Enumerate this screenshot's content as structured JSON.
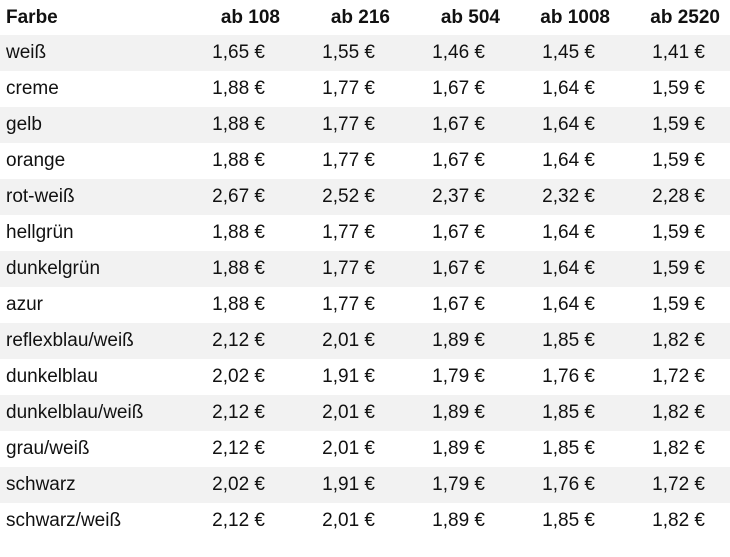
{
  "table": {
    "headers": [
      "Farbe",
      "ab 108",
      "ab 216",
      "ab 504",
      "ab 1008",
      "ab 2520"
    ],
    "rows": [
      [
        "weiß",
        "1,65 €",
        "1,55 €",
        "1,46 €",
        "1,45 €",
        "1,41 €"
      ],
      [
        "creme",
        "1,88 €",
        "1,77 €",
        "1,67 €",
        "1,64 €",
        "1,59 €"
      ],
      [
        "gelb",
        "1,88 €",
        "1,77 €",
        "1,67 €",
        "1,64 €",
        "1,59 €"
      ],
      [
        "orange",
        "1,88 €",
        "1,77 €",
        "1,67 €",
        "1,64 €",
        "1,59 €"
      ],
      [
        "rot-weiß",
        "2,67 €",
        "2,52 €",
        "2,37 €",
        "2,32 €",
        "2,28 €"
      ],
      [
        "hellgrün",
        "1,88 €",
        "1,77 €",
        "1,67 €",
        "1,64 €",
        "1,59 €"
      ],
      [
        "dunkelgrün",
        "1,88 €",
        "1,77 €",
        "1,67 €",
        "1,64 €",
        "1,59 €"
      ],
      [
        "azur",
        "1,88 €",
        "1,77 €",
        "1,67 €",
        "1,64 €",
        "1,59 €"
      ],
      [
        "reflexblau/weiß",
        "2,12 €",
        "2,01 €",
        "1,89 €",
        "1,85 €",
        "1,82 €"
      ],
      [
        "dunkelblau",
        "2,02 €",
        "1,91 €",
        "1,79 €",
        "1,76 €",
        "1,72 €"
      ],
      [
        "dunkelblau/weiß",
        "2,12 €",
        "2,01 €",
        "1,89 €",
        "1,85 €",
        "1,82 €"
      ],
      [
        "grau/weiß",
        "2,12 €",
        "2,01 €",
        "1,89 €",
        "1,85 €",
        "1,82 €"
      ],
      [
        "schwarz",
        "2,02 €",
        "1,91 €",
        "1,79 €",
        "1,76 €",
        "1,72 €"
      ],
      [
        "schwarz/weiß",
        "2,12 €",
        "2,01 €",
        "1,89 €",
        "1,85 €",
        "1,82 €"
      ]
    ]
  },
  "colors": {
    "row_stripe": "#f2f2f2",
    "background": "#ffffff",
    "text": "#111111"
  }
}
